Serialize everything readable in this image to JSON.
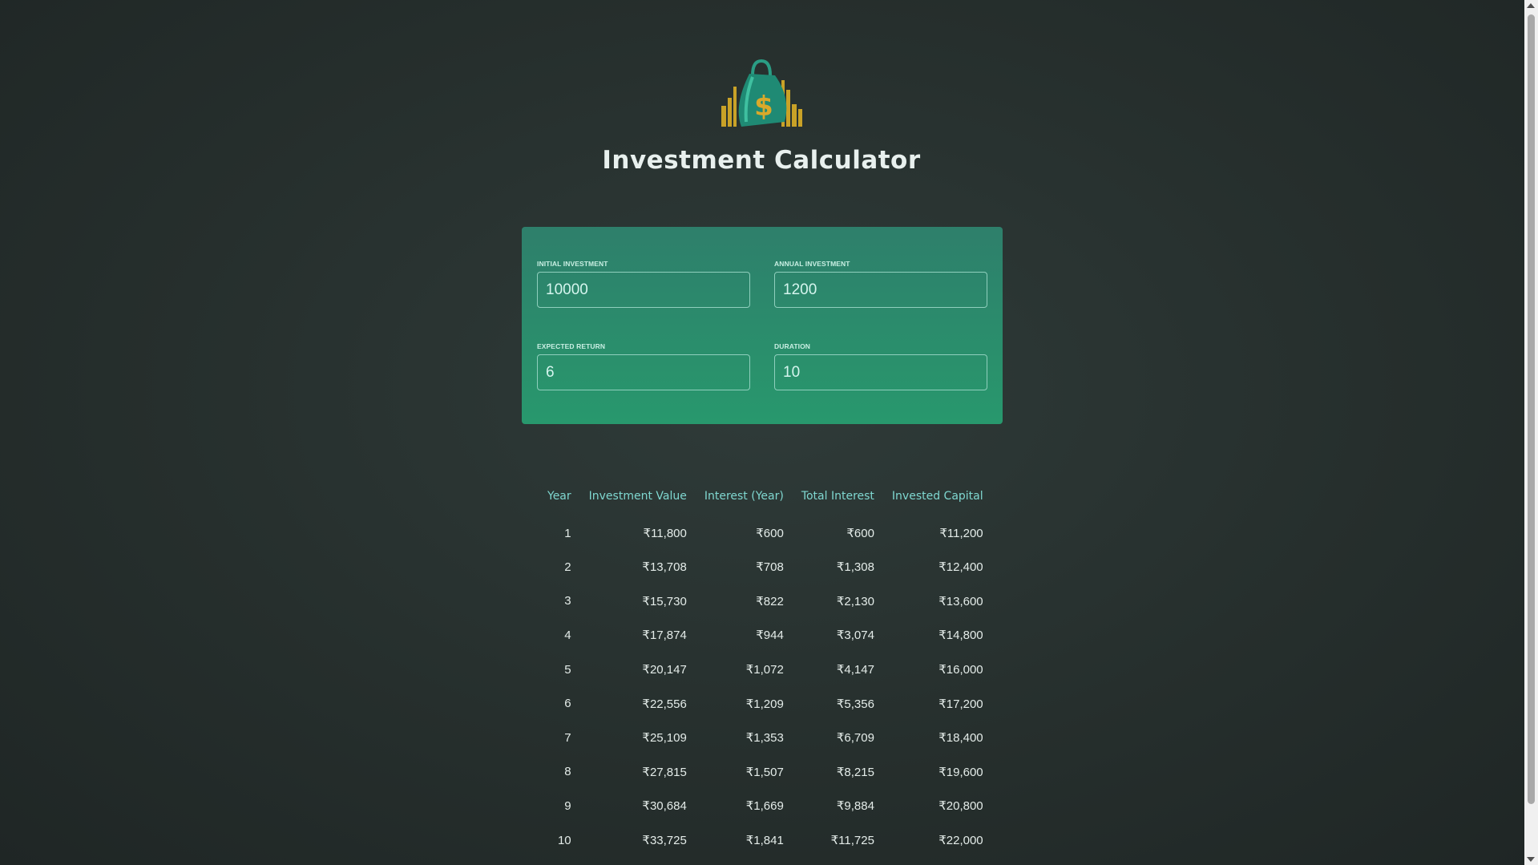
{
  "header": {
    "logo_icon": "money-bag-dollar-icon",
    "title": "Investment Calculator"
  },
  "inputs": {
    "initial_investment": {
      "label": "INITIAL INVESTMENT",
      "value": "10000"
    },
    "annual_investment": {
      "label": "ANNUAL INVESTMENT",
      "value": "1200"
    },
    "expected_return": {
      "label": "EXPECTED RETURN",
      "value": "6"
    },
    "duration": {
      "label": "DURATION",
      "value": "10"
    }
  },
  "table": {
    "headers": [
      "Year",
      "Investment Value",
      "Interest (Year)",
      "Total Interest",
      "Invested Capital"
    ],
    "rows": [
      [
        "1",
        "₹11,800",
        "₹600",
        "₹600",
        "₹11,200"
      ],
      [
        "2",
        "₹13,708",
        "₹708",
        "₹1,308",
        "₹12,400"
      ],
      [
        "3",
        "₹15,730",
        "₹822",
        "₹2,130",
        "₹13,600"
      ],
      [
        "4",
        "₹17,874",
        "₹944",
        "₹3,074",
        "₹14,800"
      ],
      [
        "5",
        "₹20,147",
        "₹1,072",
        "₹4,147",
        "₹16,000"
      ],
      [
        "6",
        "₹22,556",
        "₹1,209",
        "₹5,356",
        "₹17,200"
      ],
      [
        "7",
        "₹25,109",
        "₹1,353",
        "₹6,709",
        "₹18,400"
      ],
      [
        "8",
        "₹27,815",
        "₹1,507",
        "₹8,215",
        "₹19,600"
      ],
      [
        "9",
        "₹30,684",
        "₹1,669",
        "₹9,884",
        "₹20,800"
      ],
      [
        "10",
        "₹33,725",
        "₹1,841",
        "₹11,725",
        "₹22,000"
      ]
    ]
  },
  "colors": {
    "panel": "#2a8c6c",
    "header_text": "#7fd7d0",
    "background": "#262f2d"
  }
}
